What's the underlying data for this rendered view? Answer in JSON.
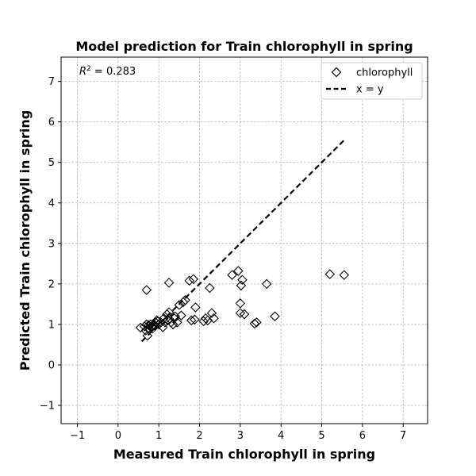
{
  "chart_data": {
    "type": "scatter",
    "title": "Model prediction for Train chlorophyll in spring",
    "xlabel": "Measured Train chlorophyll in spring",
    "ylabel": "Predicted Train chlorophyll in spring",
    "xlim": [
      -1.4,
      7.6
    ],
    "ylim": [
      -1.45,
      7.6
    ],
    "xticks": [
      -1,
      0,
      1,
      2,
      3,
      4,
      5,
      6,
      7
    ],
    "yticks": [
      -1,
      0,
      1,
      2,
      3,
      4,
      5,
      6,
      7
    ],
    "xtick_labels": [
      "−1",
      "0",
      "1",
      "2",
      "3",
      "4",
      "5",
      "6",
      "7"
    ],
    "ytick_labels": [
      "−1",
      "0",
      "1",
      "2",
      "3",
      "4",
      "5",
      "6",
      "7"
    ],
    "grid": true,
    "legend_position": "top-right",
    "annotation": {
      "prefix": "R",
      "superscript": "2",
      "suffix": " = 0.283"
    },
    "series": [
      {
        "name": "chlorophyll",
        "marker": "diamond",
        "color": "#000000",
        "x": [
          0.55,
          0.65,
          0.68,
          0.7,
          0.72,
          0.74,
          0.75,
          0.78,
          0.8,
          0.82,
          0.85,
          0.88,
          0.9,
          0.92,
          0.95,
          0.98,
          1.0,
          1.05,
          1.1,
          1.12,
          1.15,
          1.2,
          1.22,
          1.25,
          1.3,
          1.35,
          1.38,
          1.4,
          1.45,
          1.5,
          1.55,
          1.6,
          1.65,
          1.75,
          1.8,
          1.85,
          1.88,
          1.9,
          2.1,
          2.15,
          2.2,
          2.25,
          2.3,
          2.35,
          2.8,
          2.95,
          3.0,
          3.0,
          3.02,
          3.05,
          3.1,
          3.35,
          3.4,
          3.65,
          3.85,
          5.2,
          5.55,
          0.7,
          1.25
        ],
        "y": [
          0.92,
          0.95,
          0.85,
          1.0,
          0.72,
          0.9,
          0.98,
          0.88,
          1.0,
          0.95,
          0.9,
          1.0,
          0.97,
          1.05,
          1.1,
          1.08,
          1.0,
          1.05,
          0.93,
          1.15,
          1.05,
          1.25,
          1.1,
          1.3,
          1.05,
          1.0,
          1.15,
          1.2,
          1.05,
          1.48,
          1.22,
          1.55,
          1.6,
          2.08,
          1.1,
          2.12,
          1.12,
          1.42,
          1.08,
          1.15,
          1.1,
          1.9,
          1.28,
          1.15,
          2.22,
          2.32,
          1.28,
          1.52,
          1.96,
          2.1,
          1.25,
          1.02,
          1.05,
          2.0,
          1.2,
          2.24,
          2.22,
          1.85,
          2.03
        ]
      },
      {
        "name": "x = y",
        "line_style": "dashed",
        "color": "#000000",
        "x": [
          0.58,
          5.55
        ],
        "y": [
          0.58,
          5.55
        ]
      }
    ]
  }
}
